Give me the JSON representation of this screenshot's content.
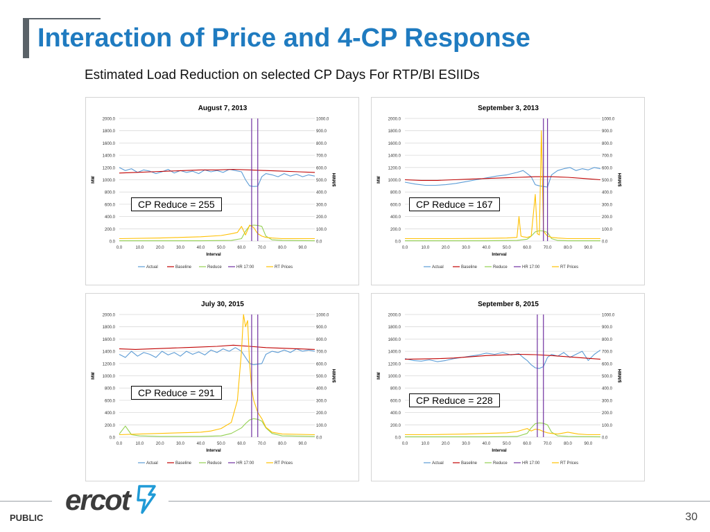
{
  "slide": {
    "title": "Interaction of Price and 4-CP Response",
    "subtitle": "Estimated Load Reduction on selected CP Days For RTP/BI ESIIDs",
    "footer_label": "PUBLIC",
    "page_number": "30",
    "logo_text": "ercot"
  },
  "colors": {
    "title": "#1f7bc0",
    "actual": "#5b9bd5",
    "baseline": "#c00000",
    "reduce": "#92d050",
    "hr1700": "#7030a0",
    "rtprices": "#ffc000"
  },
  "chart_data": [
    {
      "type": "line",
      "title": "August 7, 2013",
      "xlabel": "Interval",
      "ylabel": "MW",
      "y2label": "$/MWH",
      "xlim": [
        0,
        96
      ],
      "ylim": [
        0,
        2000
      ],
      "y2lim": [
        0,
        1000
      ],
      "x_ticks": [
        "0.0",
        "10.0",
        "20.0",
        "30.0",
        "40.0",
        "50.0",
        "60.0",
        "70.0",
        "80.0",
        "90.0"
      ],
      "y_ticks": [
        "0.0",
        "200.0",
        "400.0",
        "600.0",
        "800.0",
        "1000.0",
        "1200.0",
        "1400.0",
        "1600.0",
        "1800.0",
        "2000.0"
      ],
      "y2_ticks": [
        "0.0",
        "100.0",
        "200.0",
        "300.0",
        "400.0",
        "500.0",
        "600.0",
        "700.0",
        "800.0",
        "900.0",
        "1000.0"
      ],
      "legend": [
        "Actual",
        "Baseline",
        "Reduce",
        "HR 17:00",
        "RT Prices"
      ],
      "callout": "CP Reduce = 255",
      "hr_lines": [
        65,
        68
      ],
      "series": [
        {
          "name": "Actual",
          "axis": "left",
          "x": [
            0,
            3,
            6,
            9,
            12,
            15,
            18,
            21,
            24,
            27,
            30,
            33,
            36,
            39,
            42,
            45,
            48,
            51,
            54,
            57,
            60,
            62,
            64,
            66,
            68,
            70,
            72,
            75,
            78,
            81,
            84,
            87,
            90,
            93,
            96
          ],
          "values": [
            1200,
            1150,
            1180,
            1120,
            1160,
            1140,
            1100,
            1130,
            1170,
            1110,
            1150,
            1120,
            1140,
            1100,
            1160,
            1130,
            1150,
            1120,
            1170,
            1150,
            1130,
            1000,
            900,
            890,
            895,
            1050,
            1100,
            1080,
            1050,
            1100,
            1060,
            1090,
            1050,
            1080,
            1060
          ]
        },
        {
          "name": "Baseline",
          "axis": "left",
          "x": [
            0,
            8,
            16,
            24,
            32,
            40,
            48,
            56,
            64,
            72,
            80,
            88,
            96
          ],
          "values": [
            1110,
            1120,
            1130,
            1140,
            1150,
            1160,
            1160,
            1170,
            1160,
            1150,
            1140,
            1130,
            1120
          ]
        },
        {
          "name": "Reduce",
          "axis": "left",
          "x": [
            0,
            40,
            55,
            60,
            62,
            64,
            66,
            68,
            70,
            72,
            75,
            80,
            96
          ],
          "values": [
            5,
            5,
            10,
            40,
            160,
            250,
            260,
            255,
            240,
            80,
            20,
            10,
            5
          ]
        },
        {
          "name": "RT Prices",
          "axis": "right",
          "x": [
            0,
            20,
            30,
            40,
            50,
            55,
            58,
            60,
            62,
            64,
            66,
            68,
            70,
            72,
            75,
            80,
            90,
            96
          ],
          "values": [
            20,
            25,
            30,
            35,
            45,
            60,
            70,
            120,
            50,
            130,
            110,
            60,
            40,
            30,
            25,
            20,
            20,
            20
          ]
        }
      ]
    },
    {
      "type": "line",
      "title": "September 3, 2013",
      "xlabel": "Interval",
      "ylabel": "MW",
      "y2label": "$/MWH",
      "xlim": [
        0,
        96
      ],
      "ylim": [
        0,
        2000
      ],
      "y2lim": [
        0,
        1000
      ],
      "x_ticks": [
        "0.0",
        "10.0",
        "20.0",
        "30.0",
        "40.0",
        "50.0",
        "60.0",
        "70.0",
        "80.0",
        "90.0"
      ],
      "y_ticks": [
        "0.0",
        "200.0",
        "400.0",
        "600.0",
        "800.0",
        "1000.0",
        "1200.0",
        "1400.0",
        "1600.0",
        "1800.0",
        "2000.0"
      ],
      "y2_ticks": [
        "0.0",
        "100.0",
        "200.0",
        "300.0",
        "400.0",
        "500.0",
        "600.0",
        "700.0",
        "800.0",
        "900.0",
        "1000.0"
      ],
      "legend": [
        "Actual",
        "Baseline",
        "Reduce",
        "HR 17:00",
        "RT Prices"
      ],
      "callout": "CP Reduce = 167",
      "hr_lines": [
        68,
        70
      ],
      "series": [
        {
          "name": "Actual",
          "axis": "left",
          "x": [
            0,
            5,
            10,
            15,
            20,
            25,
            30,
            35,
            40,
            45,
            50,
            55,
            58,
            60,
            62,
            64,
            66,
            68,
            70,
            72,
            75,
            78,
            81,
            84,
            87,
            90,
            93,
            96
          ],
          "values": [
            960,
            930,
            910,
            910,
            920,
            940,
            970,
            1000,
            1030,
            1060,
            1080,
            1120,
            1150,
            1100,
            1050,
            920,
            900,
            890,
            880,
            1080,
            1150,
            1180,
            1200,
            1150,
            1180,
            1160,
            1200,
            1180
          ]
        },
        {
          "name": "Baseline",
          "axis": "left",
          "x": [
            0,
            8,
            16,
            24,
            32,
            40,
            48,
            56,
            64,
            72,
            80,
            88,
            96
          ],
          "values": [
            1000,
            990,
            990,
            1000,
            1010,
            1020,
            1030,
            1040,
            1050,
            1050,
            1040,
            1020,
            1000
          ]
        },
        {
          "name": "Reduce",
          "axis": "left",
          "x": [
            0,
            40,
            55,
            60,
            62,
            64,
            66,
            68,
            70,
            72,
            75,
            80,
            96
          ],
          "values": [
            5,
            5,
            10,
            30,
            80,
            150,
            170,
            165,
            140,
            40,
            10,
            5,
            5
          ]
        },
        {
          "name": "RT Prices",
          "axis": "right",
          "x": [
            0,
            20,
            40,
            50,
            55,
            56,
            57,
            58,
            60,
            62,
            64,
            65,
            66,
            67,
            68,
            69,
            70,
            72,
            75,
            80,
            96
          ],
          "values": [
            20,
            20,
            22,
            25,
            30,
            200,
            40,
            35,
            30,
            40,
            380,
            60,
            50,
            900,
            80,
            60,
            40,
            30,
            25,
            20,
            20
          ]
        }
      ]
    },
    {
      "type": "line",
      "title": "July 30, 2015",
      "xlabel": "Interval",
      "ylabel": "MW",
      "y2label": "$/MWH",
      "xlim": [
        0,
        96
      ],
      "ylim": [
        0,
        2000
      ],
      "y2lim": [
        0,
        1000
      ],
      "x_ticks": [
        "0.0",
        "10.0",
        "20.0",
        "30.0",
        "40.0",
        "50.0",
        "60.0",
        "70.0",
        "80.0",
        "90.0"
      ],
      "y_ticks": [
        "0.0",
        "200.0",
        "400.0",
        "600.0",
        "800.0",
        "1000.0",
        "1200.0",
        "1400.0",
        "1600.0",
        "1800.0",
        "2000.0"
      ],
      "y2_ticks": [
        "0.0",
        "100.0",
        "200.0",
        "300.0",
        "400.0",
        "500.0",
        "600.0",
        "700.0",
        "800.0",
        "900.0",
        "1000.0"
      ],
      "legend": [
        "Actual",
        "Baseline",
        "Reduce",
        "HR 17:00",
        "RT Prices"
      ],
      "callout": "CP Reduce = 291",
      "hr_lines": [
        65,
        68
      ],
      "series": [
        {
          "name": "Actual",
          "axis": "left",
          "x": [
            0,
            3,
            6,
            9,
            12,
            15,
            18,
            21,
            24,
            27,
            30,
            33,
            36,
            39,
            42,
            45,
            48,
            51,
            54,
            57,
            60,
            62,
            64,
            66,
            68,
            70,
            72,
            75,
            78,
            81,
            84,
            87,
            90,
            93,
            96
          ],
          "values": [
            1350,
            1300,
            1400,
            1320,
            1380,
            1350,
            1300,
            1400,
            1340,
            1380,
            1320,
            1400,
            1350,
            1390,
            1340,
            1420,
            1380,
            1440,
            1400,
            1460,
            1400,
            1300,
            1200,
            1180,
            1190,
            1200,
            1350,
            1400,
            1380,
            1420,
            1380,
            1440,
            1400,
            1420,
            1400
          ]
        },
        {
          "name": "Baseline",
          "axis": "left",
          "x": [
            0,
            8,
            16,
            24,
            32,
            40,
            48,
            56,
            64,
            72,
            80,
            88,
            96
          ],
          "values": [
            1440,
            1430,
            1440,
            1450,
            1460,
            1470,
            1480,
            1500,
            1480,
            1460,
            1450,
            1440,
            1430
          ]
        },
        {
          "name": "Reduce",
          "axis": "left",
          "x": [
            0,
            3,
            6,
            10,
            20,
            40,
            50,
            55,
            60,
            62,
            64,
            66,
            68,
            70,
            72,
            75,
            80,
            96
          ],
          "values": [
            50,
            180,
            40,
            20,
            10,
            10,
            20,
            60,
            150,
            220,
            280,
            300,
            290,
            260,
            150,
            60,
            20,
            10
          ]
        },
        {
          "name": "RT Prices",
          "axis": "right",
          "x": [
            0,
            10,
            20,
            30,
            40,
            45,
            50,
            55,
            58,
            60,
            61,
            62,
            63,
            64,
            65,
            66,
            68,
            70,
            72,
            75,
            80,
            96
          ],
          "values": [
            20,
            25,
            30,
            35,
            40,
            50,
            70,
            120,
            300,
            700,
            1000,
            900,
            950,
            600,
            400,
            300,
            200,
            150,
            80,
            40,
            25,
            20
          ]
        }
      ]
    },
    {
      "type": "line",
      "title": "September 8, 2015",
      "xlabel": "Interval",
      "ylabel": "MW",
      "y2label": "$/MWH",
      "xlim": [
        0,
        96
      ],
      "ylim": [
        0,
        2000
      ],
      "y2lim": [
        0,
        1000
      ],
      "x_ticks": [
        "0.0",
        "10.0",
        "20.0",
        "30.0",
        "40.0",
        "50.0",
        "60.0",
        "70.0",
        "80.0",
        "90.0"
      ],
      "y_ticks": [
        "0.0",
        "200.0",
        "400.0",
        "600.0",
        "800.0",
        "1000.0",
        "1200.0",
        "1400.0",
        "1600.0",
        "1800.0",
        "2000.0"
      ],
      "y2_ticks": [
        "0.0",
        "100.0",
        "200.0",
        "300.0",
        "400.0",
        "500.0",
        "600.0",
        "700.0",
        "800.0",
        "900.0",
        "1000.0"
      ],
      "legend": [
        "Actual",
        "Baseline",
        "Reduce",
        "HR 17:00",
        "RT Prices"
      ],
      "callout": "CP Reduce = 228",
      "hr_lines": [
        65,
        68
      ],
      "series": [
        {
          "name": "Actual",
          "axis": "left",
          "x": [
            0,
            4,
            8,
            12,
            16,
            20,
            24,
            28,
            32,
            36,
            40,
            44,
            48,
            52,
            56,
            58,
            60,
            62,
            64,
            66,
            68,
            70,
            72,
            75,
            78,
            81,
            84,
            87,
            90,
            93,
            96
          ],
          "values": [
            1280,
            1250,
            1240,
            1260,
            1230,
            1250,
            1280,
            1300,
            1320,
            1340,
            1370,
            1350,
            1380,
            1340,
            1360,
            1300,
            1250,
            1180,
            1130,
            1120,
            1150,
            1300,
            1350,
            1320,
            1380,
            1300,
            1350,
            1400,
            1250,
            1350,
            1420
          ]
        },
        {
          "name": "Baseline",
          "axis": "left",
          "x": [
            0,
            8,
            16,
            24,
            32,
            40,
            48,
            56,
            64,
            72,
            80,
            88,
            96
          ],
          "values": [
            1270,
            1275,
            1280,
            1290,
            1310,
            1330,
            1340,
            1350,
            1345,
            1330,
            1310,
            1290,
            1270
          ]
        },
        {
          "name": "Reduce",
          "axis": "left",
          "x": [
            0,
            40,
            55,
            60,
            62,
            64,
            66,
            68,
            70,
            72,
            75,
            80,
            96
          ],
          "values": [
            5,
            5,
            10,
            60,
            150,
            220,
            230,
            225,
            200,
            80,
            20,
            10,
            5
          ]
        },
        {
          "name": "RT Prices",
          "axis": "right",
          "x": [
            0,
            10,
            20,
            30,
            40,
            50,
            55,
            58,
            60,
            62,
            64,
            66,
            68,
            70,
            72,
            75,
            80,
            85,
            90,
            96
          ],
          "values": [
            20,
            20,
            22,
            25,
            30,
            35,
            45,
            60,
            70,
            50,
            65,
            60,
            45,
            35,
            30,
            25,
            40,
            25,
            20,
            20
          ]
        }
      ]
    }
  ]
}
